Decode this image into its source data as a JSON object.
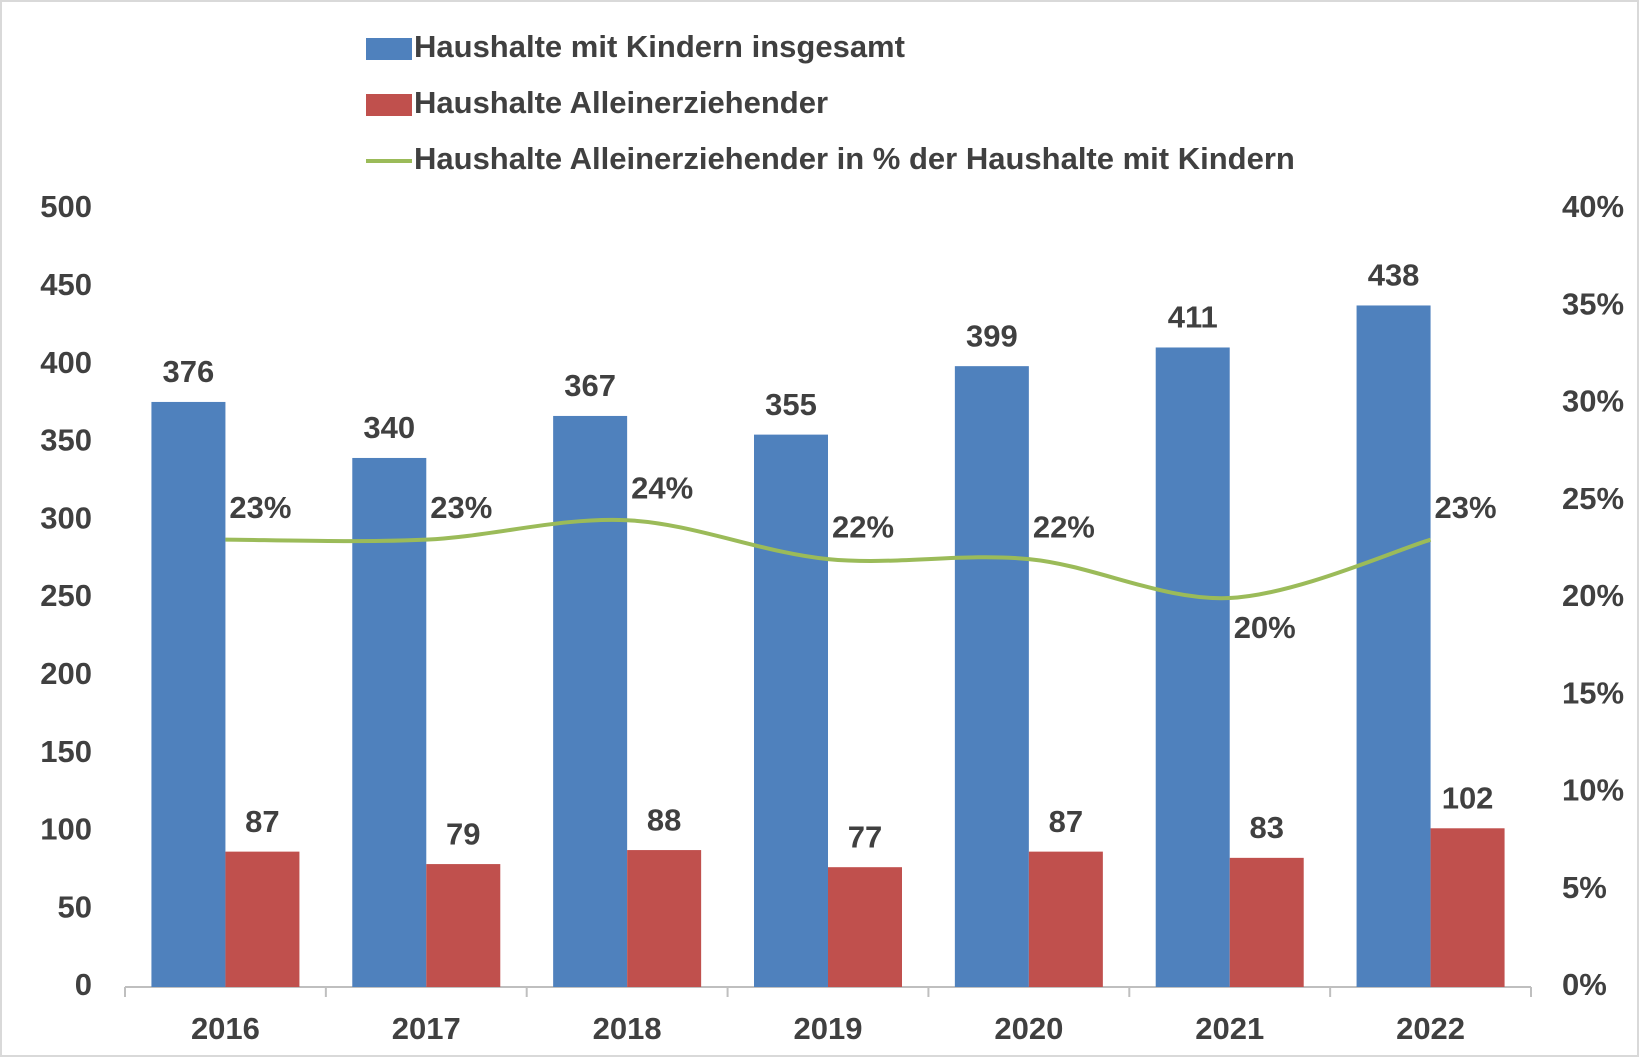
{
  "chart_data": {
    "type": "bar_line",
    "categories": [
      "2016",
      "2017",
      "2018",
      "2019",
      "2020",
      "2021",
      "2022"
    ],
    "series": [
      {
        "name": "Haushalte mit Kindern insgesamt",
        "color": "#4f81bd",
        "type": "bar",
        "values": [
          376,
          340,
          367,
          355,
          399,
          411,
          438
        ]
      },
      {
        "name": "Haushalte Alleinerziehender",
        "color": "#c0504d",
        "type": "bar",
        "values": [
          87,
          79,
          88,
          77,
          87,
          83,
          102
        ]
      },
      {
        "name": "Haushalte Alleinerziehender in % der Haushalte mit Kindern",
        "color": "#9bbb59",
        "type": "line",
        "axis": "y2",
        "values": [
          23,
          23,
          24,
          22,
          22,
          20,
          23
        ],
        "value_labels": [
          "23%",
          "23%",
          "24%",
          "22%",
          "22%",
          "20%",
          "23%"
        ]
      }
    ],
    "ylim": [
      0,
      500
    ],
    "yticks": [
      0,
      50,
      100,
      150,
      200,
      250,
      300,
      350,
      400,
      450,
      500
    ],
    "y2lim": [
      0,
      40
    ],
    "y2ticks": [
      {
        "value": 0,
        "label": "0%"
      },
      {
        "value": 5,
        "label": "5%"
      },
      {
        "value": 10,
        "label": "10%"
      },
      {
        "value": 15,
        "label": "15%"
      },
      {
        "value": 20,
        "label": "20%"
      },
      {
        "value": 25,
        "label": "25%"
      },
      {
        "value": 30,
        "label": "30%"
      },
      {
        "value": 35,
        "label": "35%"
      },
      {
        "value": 40,
        "label": "40%"
      }
    ],
    "legend": "top"
  }
}
